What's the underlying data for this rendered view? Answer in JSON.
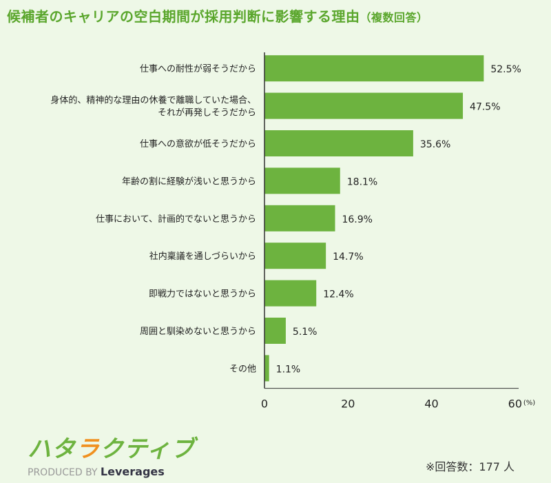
{
  "title": "候補者のキャリアの空白期間が採用判断に影響する理由",
  "title_suffix": "（複数回答）",
  "chart_data": {
    "type": "bar",
    "orientation": "horizontal",
    "title": "候補者のキャリアの空白期間が採用判断に影響する理由（複数回答）",
    "categories": [
      [
        "仕事への耐性が弱そうだから"
      ],
      [
        "身体的、精神的な理由の休養で離職していた場合、",
        "それが再発しそうだから"
      ],
      [
        "仕事への意欲が低そうだから"
      ],
      [
        "年齢の割に経験が浅いと思うから"
      ],
      [
        "仕事において、計画的でないと思うから"
      ],
      [
        "社内稟議を通しづらいから"
      ],
      [
        "即戦力ではないと思うから"
      ],
      [
        "周囲と馴染めないと思うから"
      ],
      [
        "その他"
      ]
    ],
    "values": [
      52.5,
      47.5,
      35.6,
      18.1,
      16.9,
      14.7,
      12.4,
      5.1,
      1.1
    ],
    "value_labels": [
      "52.5%",
      "47.5%",
      "35.6%",
      "18.1%",
      "16.9%",
      "14.7%",
      "12.4%",
      "5.1%",
      "1.1%"
    ],
    "xlim": [
      0,
      60
    ],
    "xticks": [
      "0",
      "20",
      "40",
      "60"
    ],
    "xunit": "(%)",
    "grid": false,
    "bar_color": "#6db33f"
  },
  "logo": {
    "name": "ハタラクティブ",
    "produced_by": "PRODUCED BY",
    "brand": "Leverages"
  },
  "note": "※回答数：177 人"
}
